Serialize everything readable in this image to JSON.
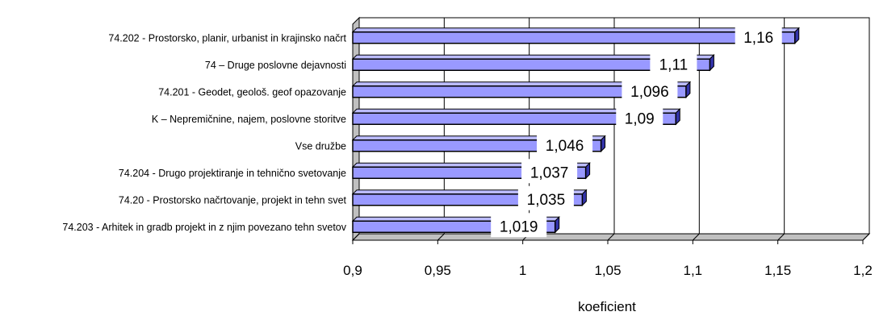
{
  "chart_data": {
    "type": "bar",
    "orientation": "horizontal",
    "style": "3d",
    "categories": [
      "74.202 - Prostorsko, planir, urbanist in krajinsko načrt",
      "74 – Druge poslovne dejavnosti",
      "74.201 - Geodet, geološ. geof opazovanje",
      "K – Nepremičnine, najem, poslovne storitve",
      "Vse družbe",
      "74.204 - Drugo projektiranje in tehnično svetovanje",
      "74.20 - Prostorsko načrtovanje, projekt in tehn svet",
      "74.203 - Arhitek in gradb projekt in z njim povezano tehn svetov"
    ],
    "values": [
      1.16,
      1.11,
      1.096,
      1.09,
      1.046,
      1.037,
      1.035,
      1.019
    ],
    "data_labels": [
      "1,16",
      "1,11",
      "1,096",
      "1,09",
      "1,046",
      "1,037",
      "1,035",
      "1,019"
    ],
    "xlabel": "koeficient",
    "xlim": [
      0.9,
      1.2
    ],
    "ticks": [
      0.9,
      0.95,
      1.0,
      1.05,
      1.1,
      1.15,
      1.2
    ],
    "tick_labels": [
      "0,9",
      "0,95",
      "1",
      "1,05",
      "1,1",
      "1,15",
      "1,2"
    ],
    "grid": true,
    "colors": {
      "bar_front": "#9999ff",
      "bar_top": "#bbbbff",
      "bar_side": "#3333aa",
      "grid": "#000000",
      "wall": "#c0c0c0"
    }
  }
}
